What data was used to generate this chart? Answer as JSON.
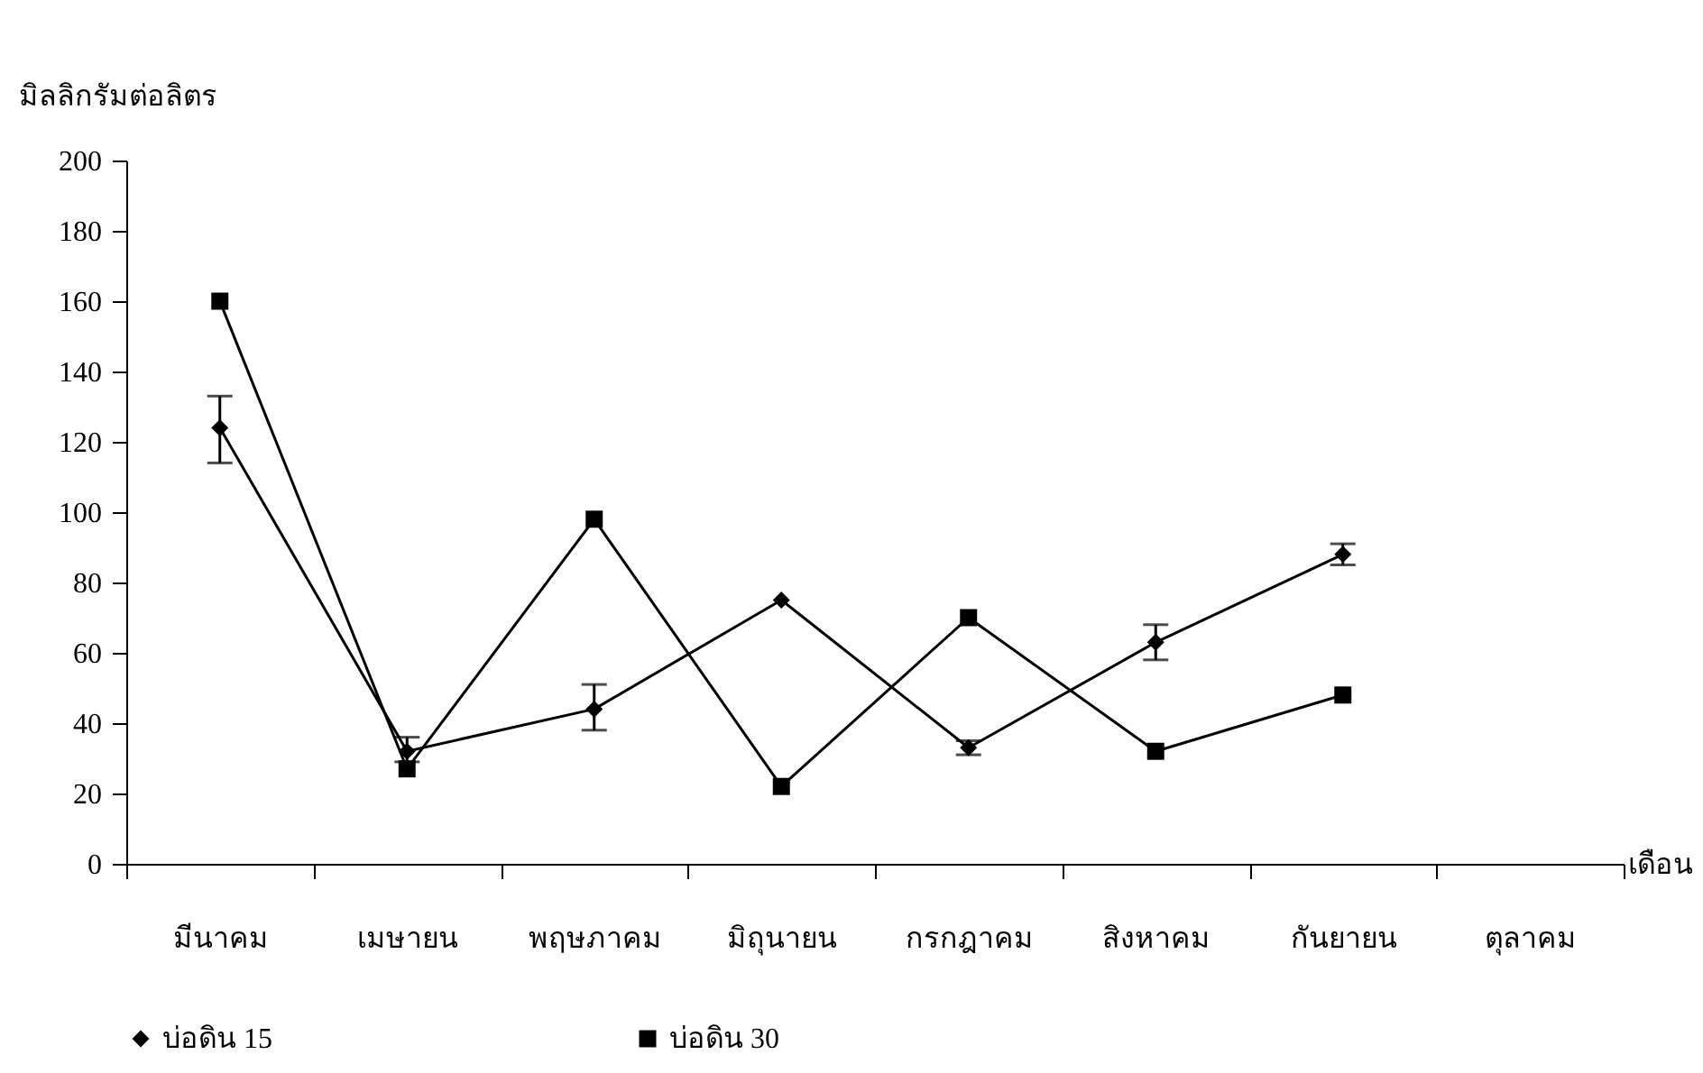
{
  "chart_data": {
    "type": "line",
    "ylabel": "มิลลิกรัมต่อลิตร",
    "xlabel": "เดือน",
    "categories": [
      "มีนาคม",
      "เมษายน",
      "พฤษภาคม",
      "มิถุนายน",
      "กรกฎาคม",
      "สิงหาคม",
      "กันยายน",
      "ตุลาคม"
    ],
    "series": [
      {
        "name": "บ่อดิน 15",
        "color": "#000000",
        "marker": "diamond",
        "values": [
          124,
          32,
          44,
          75,
          33,
          63,
          88,
          null
        ],
        "errors": [
          [
            114,
            133
          ],
          [
            29,
            36
          ],
          [
            38,
            51
          ],
          null,
          [
            31,
            35
          ],
          [
            58,
            68
          ],
          [
            85,
            91
          ],
          null
        ]
      },
      {
        "name": "บ่อดิน 30",
        "color": "#000000",
        "marker": "square",
        "values": [
          160,
          27,
          98,
          22,
          70,
          32,
          48,
          null
        ]
      }
    ],
    "ylim": [
      0,
      200
    ],
    "yticks": [
      0,
      20,
      40,
      60,
      80,
      100,
      120,
      140,
      160,
      180,
      200
    ],
    "grid": false,
    "legend": "bottom"
  }
}
